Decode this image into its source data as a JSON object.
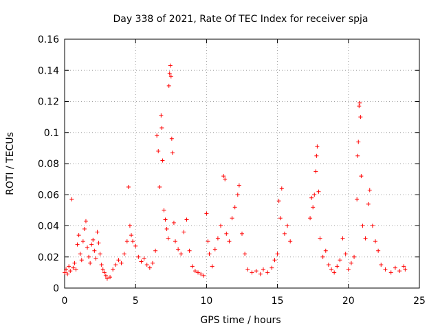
{
  "chart_data": {
    "type": "scatter",
    "title": "Day 338 of 2021, Rate Of TEC Index for receiver spja",
    "xlabel": "GPS time / hours",
    "ylabel": "ROTI / TECUs",
    "xlim": [
      0,
      25
    ],
    "ylim": [
      0,
      0.16
    ],
    "x_ticks": [
      "0",
      "5",
      "10",
      "15",
      "20",
      "25"
    ],
    "y_ticks": [
      "0",
      "0.02",
      "0.04",
      "0.06",
      "0.08",
      "0.1",
      "0.12",
      "0.14",
      "0.16"
    ],
    "grid": true,
    "marker": "+",
    "series_color": "#ff0000",
    "series": [
      {
        "name": "ROTI",
        "points": [
          [
            0.0,
            0.01
          ],
          [
            0.1,
            0.012
          ],
          [
            0.2,
            0.009
          ],
          [
            0.3,
            0.014
          ],
          [
            0.4,
            0.011
          ],
          [
            0.5,
            0.057
          ],
          [
            0.6,
            0.013
          ],
          [
            0.7,
            0.016
          ],
          [
            0.8,
            0.012
          ],
          [
            0.9,
            0.028
          ],
          [
            1.0,
            0.034
          ],
          [
            1.1,
            0.022
          ],
          [
            1.2,
            0.018
          ],
          [
            1.3,
            0.03
          ],
          [
            1.4,
            0.038
          ],
          [
            1.5,
            0.043
          ],
          [
            1.6,
            0.026
          ],
          [
            1.7,
            0.02
          ],
          [
            1.8,
            0.016
          ],
          [
            1.9,
            0.028
          ],
          [
            2.0,
            0.031
          ],
          [
            2.1,
            0.024
          ],
          [
            2.2,
            0.019
          ],
          [
            2.3,
            0.036
          ],
          [
            2.4,
            0.029
          ],
          [
            2.5,
            0.022
          ],
          [
            2.6,
            0.015
          ],
          [
            2.7,
            0.012
          ],
          [
            2.8,
            0.01
          ],
          [
            2.9,
            0.008
          ],
          [
            3.0,
            0.006
          ],
          [
            3.2,
            0.007
          ],
          [
            3.4,
            0.012
          ],
          [
            3.6,
            0.015
          ],
          [
            3.8,
            0.018
          ],
          [
            4.0,
            0.016
          ],
          [
            4.2,
            0.022
          ],
          [
            4.4,
            0.03
          ],
          [
            4.5,
            0.065
          ],
          [
            4.6,
            0.04
          ],
          [
            4.7,
            0.034
          ],
          [
            4.8,
            0.03
          ],
          [
            5.0,
            0.027
          ],
          [
            5.2,
            0.02
          ],
          [
            5.4,
            0.017
          ],
          [
            5.6,
            0.019
          ],
          [
            5.8,
            0.015
          ],
          [
            6.0,
            0.013
          ],
          [
            6.2,
            0.016
          ],
          [
            6.4,
            0.024
          ],
          [
            6.5,
            0.098
          ],
          [
            6.6,
            0.088
          ],
          [
            6.7,
            0.065
          ],
          [
            6.8,
            0.111
          ],
          [
            6.85,
            0.103
          ],
          [
            6.9,
            0.082
          ],
          [
            7.0,
            0.05
          ],
          [
            7.1,
            0.044
          ],
          [
            7.2,
            0.038
          ],
          [
            7.3,
            0.032
          ],
          [
            7.35,
            0.13
          ],
          [
            7.4,
            0.138
          ],
          [
            7.45,
            0.143
          ],
          [
            7.5,
            0.136
          ],
          [
            7.55,
            0.096
          ],
          [
            7.6,
            0.087
          ],
          [
            7.7,
            0.042
          ],
          [
            7.8,
            0.03
          ],
          [
            8.0,
            0.025
          ],
          [
            8.2,
            0.022
          ],
          [
            8.4,
            0.036
          ],
          [
            8.6,
            0.044
          ],
          [
            8.8,
            0.024
          ],
          [
            9.0,
            0.014
          ],
          [
            9.2,
            0.011
          ],
          [
            9.4,
            0.01
          ],
          [
            9.6,
            0.009
          ],
          [
            9.8,
            0.008
          ],
          [
            10.0,
            0.048
          ],
          [
            10.1,
            0.03
          ],
          [
            10.2,
            0.022
          ],
          [
            10.4,
            0.014
          ],
          [
            10.6,
            0.025
          ],
          [
            10.8,
            0.032
          ],
          [
            11.0,
            0.04
          ],
          [
            11.2,
            0.072
          ],
          [
            11.3,
            0.07
          ],
          [
            11.4,
            0.035
          ],
          [
            11.6,
            0.03
          ],
          [
            11.8,
            0.045
          ],
          [
            12.0,
            0.052
          ],
          [
            12.2,
            0.06
          ],
          [
            12.3,
            0.066
          ],
          [
            12.5,
            0.035
          ],
          [
            12.7,
            0.022
          ],
          [
            12.9,
            0.012
          ],
          [
            13.2,
            0.01
          ],
          [
            13.5,
            0.011
          ],
          [
            13.8,
            0.009
          ],
          [
            14.0,
            0.012
          ],
          [
            14.3,
            0.01
          ],
          [
            14.6,
            0.013
          ],
          [
            14.8,
            0.018
          ],
          [
            15.0,
            0.022
          ],
          [
            15.1,
            0.056
          ],
          [
            15.2,
            0.045
          ],
          [
            15.3,
            0.064
          ],
          [
            15.5,
            0.035
          ],
          [
            15.7,
            0.04
          ],
          [
            15.9,
            0.03
          ],
          [
            17.3,
            0.045
          ],
          [
            17.4,
            0.058
          ],
          [
            17.5,
            0.052
          ],
          [
            17.6,
            0.06
          ],
          [
            17.7,
            0.075
          ],
          [
            17.75,
            0.085
          ],
          [
            17.8,
            0.091
          ],
          [
            17.9,
            0.062
          ],
          [
            18.0,
            0.032
          ],
          [
            18.2,
            0.02
          ],
          [
            18.4,
            0.024
          ],
          [
            18.6,
            0.015
          ],
          [
            18.8,
            0.012
          ],
          [
            19.0,
            0.01
          ],
          [
            19.2,
            0.014
          ],
          [
            19.4,
            0.018
          ],
          [
            19.6,
            0.032
          ],
          [
            19.8,
            0.022
          ],
          [
            20.0,
            0.012
          ],
          [
            20.2,
            0.016
          ],
          [
            20.4,
            0.02
          ],
          [
            20.6,
            0.057
          ],
          [
            20.65,
            0.085
          ],
          [
            20.7,
            0.094
          ],
          [
            20.75,
            0.117
          ],
          [
            20.8,
            0.119
          ],
          [
            20.85,
            0.11
          ],
          [
            20.9,
            0.072
          ],
          [
            21.0,
            0.04
          ],
          [
            21.2,
            0.032
          ],
          [
            21.4,
            0.054
          ],
          [
            21.5,
            0.063
          ],
          [
            21.7,
            0.04
          ],
          [
            21.9,
            0.03
          ],
          [
            22.1,
            0.024
          ],
          [
            22.3,
            0.015
          ],
          [
            22.6,
            0.012
          ],
          [
            23.0,
            0.01
          ],
          [
            23.3,
            0.013
          ],
          [
            23.6,
            0.011
          ],
          [
            23.9,
            0.014
          ],
          [
            24.0,
            0.012
          ]
        ]
      }
    ]
  }
}
